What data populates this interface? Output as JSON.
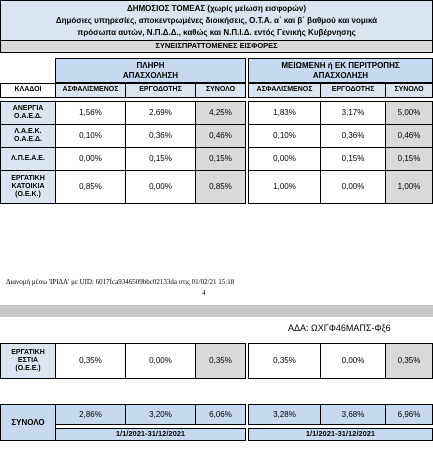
{
  "header": {
    "lines": [
      "ΔΗΜΟΣΙΟΣ ΤΟΜΕΑΣ (χωρίς μείωση εισφορών)",
      "Δημόσιες υπηρεσίες, αποκεντρωμένες διοικήσεις, Ο.Τ.Α. α΄ και β΄ βαθμού και νομικά",
      "πρόσωπα αυτών, Ν.Π.Δ.Δ., καθώς και Ν.Π.Ι.Δ. εντός Γενικής Κυβέρνησης"
    ]
  },
  "table": {
    "section_title": "ΣΥΝΕΙΣΠΡΑΤΤΟΜΕΝΕΣ ΕΙΣΦΟΡΕΣ",
    "groups": [
      [
        "ΠΛΗΡΗ",
        "ΑΠΑΣΧΟΛΗΣΗ"
      ],
      [
        "ΜΕΙΩΜΕΝΗ ή ΕΚ ΠΕΡΙΤΡΟΠΗΣ",
        "ΑΠΑΣΧΟΛΗΣΗ"
      ]
    ],
    "columns": [
      "ΚΛΑΔΟΙ",
      "ΑΣΦΑΛΙΣΜΕΝΟΣ",
      "ΕΡΓΟΔΟΤΗΣ",
      "ΣΥΝΟΛΟ",
      "ΑΣΦΑΛΙΣΜΕΝΟΣ",
      "ΕΡΓΟΔΟΤΗΣ",
      "ΣΥΝΟΛΟ"
    ],
    "rows": [
      {
        "label": [
          "ΑΝΕΡΓΙΑ",
          "Ο.Α.Ε.Δ."
        ],
        "values": [
          "1,56%",
          "2,69%",
          "4,25%",
          "1,83%",
          "3,17%",
          "5,00%"
        ]
      },
      {
        "label": [
          "Λ.Α.Ε.Κ.",
          "Ο.Α.Ε.Δ."
        ],
        "values": [
          "0,10%",
          "0,36%",
          "0,46%",
          "0,10%",
          "0,36%",
          "0,46%"
        ]
      },
      {
        "label": [
          "Λ.Π.Ε.Α.Ε."
        ],
        "values": [
          "0,00%",
          "0,15%",
          "0,15%",
          "0,00%",
          "0,15%",
          "0,15%"
        ]
      },
      {
        "label": [
          "ΕΡΓΑΤΙΚΗ",
          "ΚΑΤΟΙΚΙΑ",
          "(Ο.Ε.Κ.)"
        ],
        "values": [
          "0,85%",
          "0,00%",
          "0,85%",
          "1,00%",
          "0,00%",
          "1,00%"
        ]
      },
      {
        "label": [
          "ΕΡΓΑΤΙΚΗ",
          "ΕΣΤΙΑ",
          "(Ο.Ε.Ε.)"
        ],
        "values": [
          "0,35%",
          "0,00%",
          "0,35%",
          "0,35%",
          "0,00%",
          "0,35%"
        ]
      }
    ],
    "total": {
      "label": "ΣΥΝΟΛΟ",
      "values": [
        "2,86%",
        "3,20%",
        "6,06%",
        "3,28%",
        "3,68%",
        "6,96%"
      ],
      "periods": [
        "1/1/2021-31/12/2021",
        "1/1/2021-31/12/2021"
      ]
    }
  },
  "footer": {
    "distribution": "Διανομή μέσω 'ΙΡΙΔΑ' με UID: 6017fca9346509bbc02133da στις 01/02/21 15:18",
    "page_number": "4"
  },
  "ada": "ΑΔΑ: ΩΧΓΦ46ΜΑΠΣ-Φξ6"
}
